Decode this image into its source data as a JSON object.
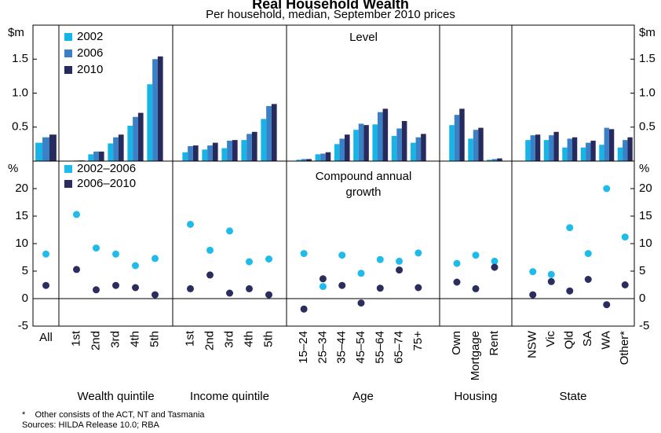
{
  "title": "Real Household Wealth",
  "subtitle": "Per household, median, September 2010 prices",
  "groups": [
    {
      "categories": [
        "All"
      ]
    },
    {
      "name": "Wealth quintile",
      "categories": [
        "1st",
        "2nd",
        "3rd",
        "4th",
        "5th"
      ]
    },
    {
      "name": "Income quintile",
      "categories": [
        "1st",
        "2nd",
        "3rd",
        "4th",
        "5th"
      ]
    },
    {
      "name": "Age",
      "categories": [
        "15–24",
        "25–34",
        "35–44",
        "45–54",
        "55–64",
        "65–74",
        "75+"
      ]
    },
    {
      "name": "Housing",
      "categories": [
        "Own",
        "Mortgage",
        "Rent"
      ]
    },
    {
      "name": "State",
      "categories": [
        "NSW",
        "Vic",
        "Qld",
        "SA",
        "WA",
        "Other*"
      ]
    }
  ],
  "notes": [
    "*    Other consists of the ACT, NT and Tasmania",
    "Sources: HILDA Release 10.0; RBA"
  ],
  "chart_data": [
    {
      "type": "bar",
      "y_label": "$m",
      "annotation": "Level",
      "ylim": [
        0,
        2
      ],
      "yticks": [
        0.5,
        {
          "value": 1,
          "label": "1.0"
        },
        1.5
      ],
      "series": [
        {
          "name": "2002",
          "color": "#17b4e6",
          "values": [
            0.27,
            0.005,
            0.1,
            0.26,
            0.52,
            1.13,
            0.13,
            0.17,
            0.19,
            0.31,
            0.62,
            0.02,
            0.1,
            0.25,
            0.46,
            0.54,
            0.37,
            0.27,
            0.53,
            0.33,
            0.02,
            0.31,
            0.31,
            0.2,
            0.2,
            0.24,
            0.2
          ]
        },
        {
          "name": "2006",
          "color": "#3a80c6",
          "values": [
            0.35,
            0.008,
            0.14,
            0.35,
            0.65,
            1.5,
            0.22,
            0.23,
            0.3,
            0.4,
            0.81,
            0.03,
            0.11,
            0.33,
            0.55,
            0.72,
            0.48,
            0.35,
            0.68,
            0.46,
            0.03,
            0.38,
            0.38,
            0.33,
            0.27,
            0.49,
            0.31
          ]
        },
        {
          "name": "2010",
          "color": "#272a5c",
          "values": [
            0.39,
            0.01,
            0.14,
            0.39,
            0.71,
            1.54,
            0.23,
            0.27,
            0.31,
            0.43,
            0.84,
            0.03,
            0.13,
            0.39,
            0.53,
            0.77,
            0.59,
            0.4,
            0.77,
            0.49,
            0.04,
            0.39,
            0.43,
            0.35,
            0.3,
            0.47,
            0.35
          ]
        }
      ]
    },
    {
      "type": "scatter",
      "y_label": "%",
      "annotation": "Compound annual growth",
      "ylim": [
        -5,
        25
      ],
      "yticks": [
        -5,
        0,
        5,
        10,
        15,
        20
      ],
      "series": [
        {
          "name": "2002–2006",
          "color": "#1fbbea",
          "values": [
            8.1,
            15.3,
            9.2,
            8.1,
            6.0,
            7.3,
            13.5,
            8.8,
            12.3,
            6.7,
            7.2,
            8.2,
            2.2,
            7.9,
            4.6,
            7.1,
            6.8,
            8.3,
            6.4,
            7.9,
            6.8,
            4.9,
            4.4,
            12.9,
            8.2,
            20.0,
            11.2
          ]
        },
        {
          "name": "2006–2010",
          "color": "#2a2d5e",
          "values": [
            2.4,
            5.3,
            1.6,
            2.4,
            2.0,
            0.7,
            1.8,
            4.3,
            1.0,
            1.8,
            0.7,
            -1.9,
            3.6,
            2.4,
            -0.8,
            1.9,
            5.2,
            2.0,
            3.0,
            1.8,
            5.7,
            0.7,
            3.1,
            1.4,
            3.5,
            -1.1,
            2.5
          ]
        }
      ]
    }
  ]
}
